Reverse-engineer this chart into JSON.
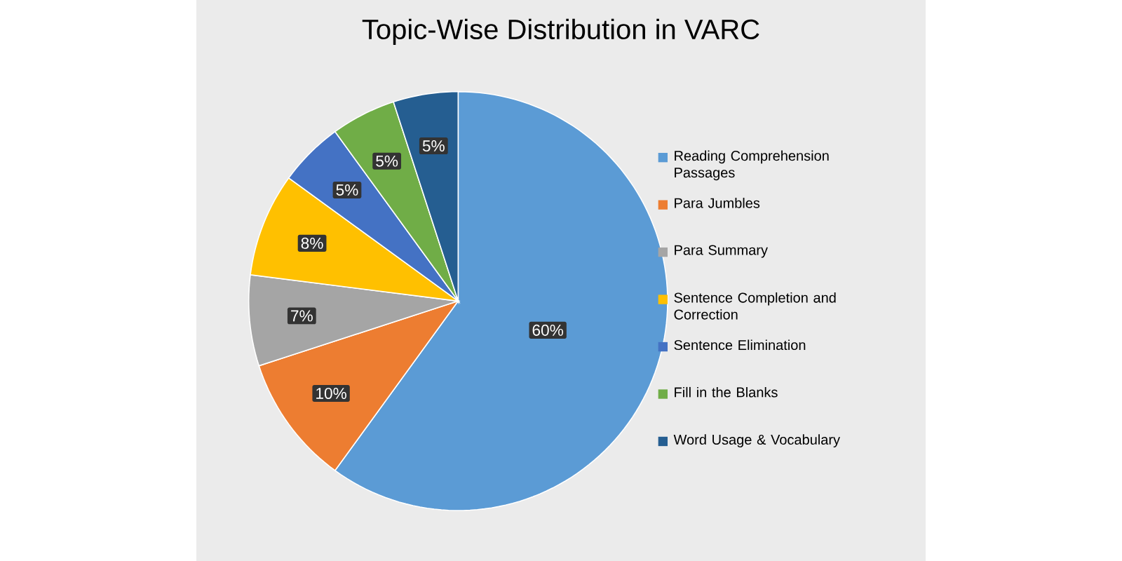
{
  "chart_data": {
    "type": "pie",
    "title": "Topic-Wise Distribution in VARC",
    "categories": [
      "Reading Comprehension Passages",
      "Para Jumbles",
      "Para Summary",
      "Sentence Completion and Correction",
      "Sentence Elimination",
      "Fill in the Blanks",
      "Word Usage & Vocabulary"
    ],
    "values": [
      60,
      10,
      7,
      8,
      5,
      5,
      5
    ],
    "colors": [
      "#5b9bd5",
      "#ed7d31",
      "#a5a5a5",
      "#ffc000",
      "#4472c4",
      "#70ad47",
      "#255e91"
    ],
    "value_labels": [
      "60%",
      "10%",
      "7%",
      "8%",
      "5%",
      "5%",
      "5%"
    ],
    "legend": "right"
  }
}
